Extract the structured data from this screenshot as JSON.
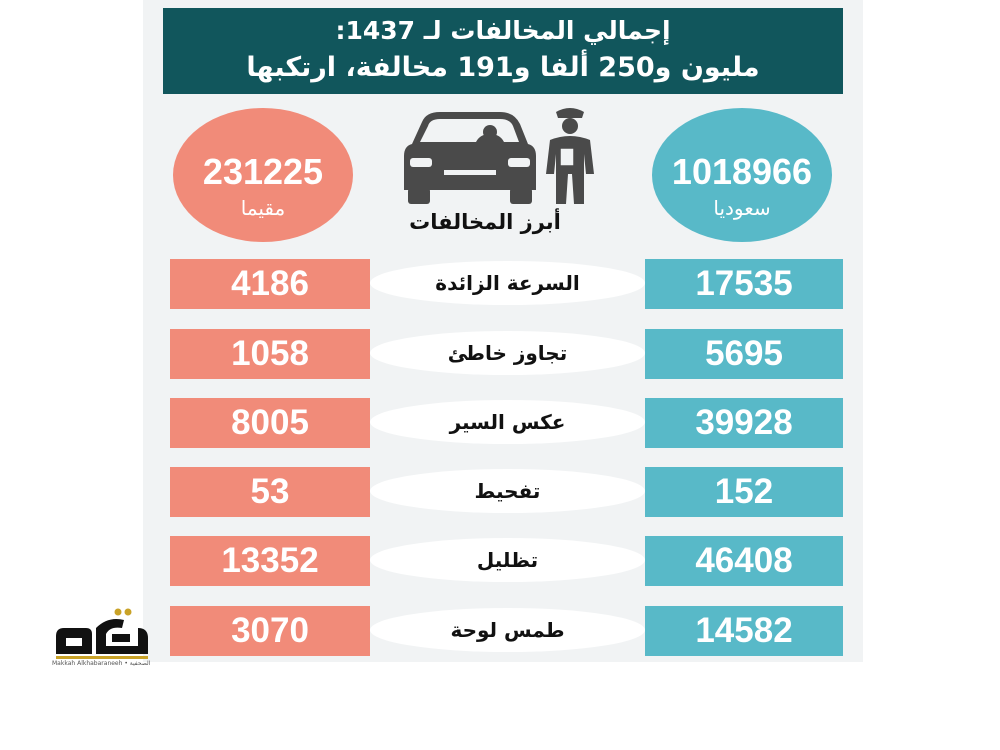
{
  "header": {
    "line1": "إجمالي المخالفات لـ 1437:",
    "line2": "مليون و250 ألفا و191 مخالفة، ارتكبها"
  },
  "residents": {
    "total": "231225",
    "label": "مقيما"
  },
  "saudis": {
    "total": "1018966",
    "label": "سعوديا"
  },
  "top_violations_label": "أبرز المخالفات",
  "violations": [
    {
      "name": "السرعة الزائدة",
      "residents": "4186",
      "saudis": "17535"
    },
    {
      "name": "تجاوز خاطئ",
      "residents": "1058",
      "saudis": "5695"
    },
    {
      "name": "عكس السير",
      "residents": "8005",
      "saudis": "39928"
    },
    {
      "name": "تفحيط",
      "residents": "53",
      "saudis": "152"
    },
    {
      "name": "تظليل",
      "residents": "13352",
      "saudis": "46408"
    },
    {
      "name": "طمس لوحة",
      "residents": "3070",
      "saudis": "14582"
    }
  ],
  "logo": {
    "name": "مكة",
    "subtitle": "Makkah Alkhabaraneeh • مكة الصحفية"
  },
  "colors": {
    "header": "#11565c",
    "residents": "#f18b79",
    "saudis": "#58b9c8",
    "background": "#f1f3f4"
  }
}
